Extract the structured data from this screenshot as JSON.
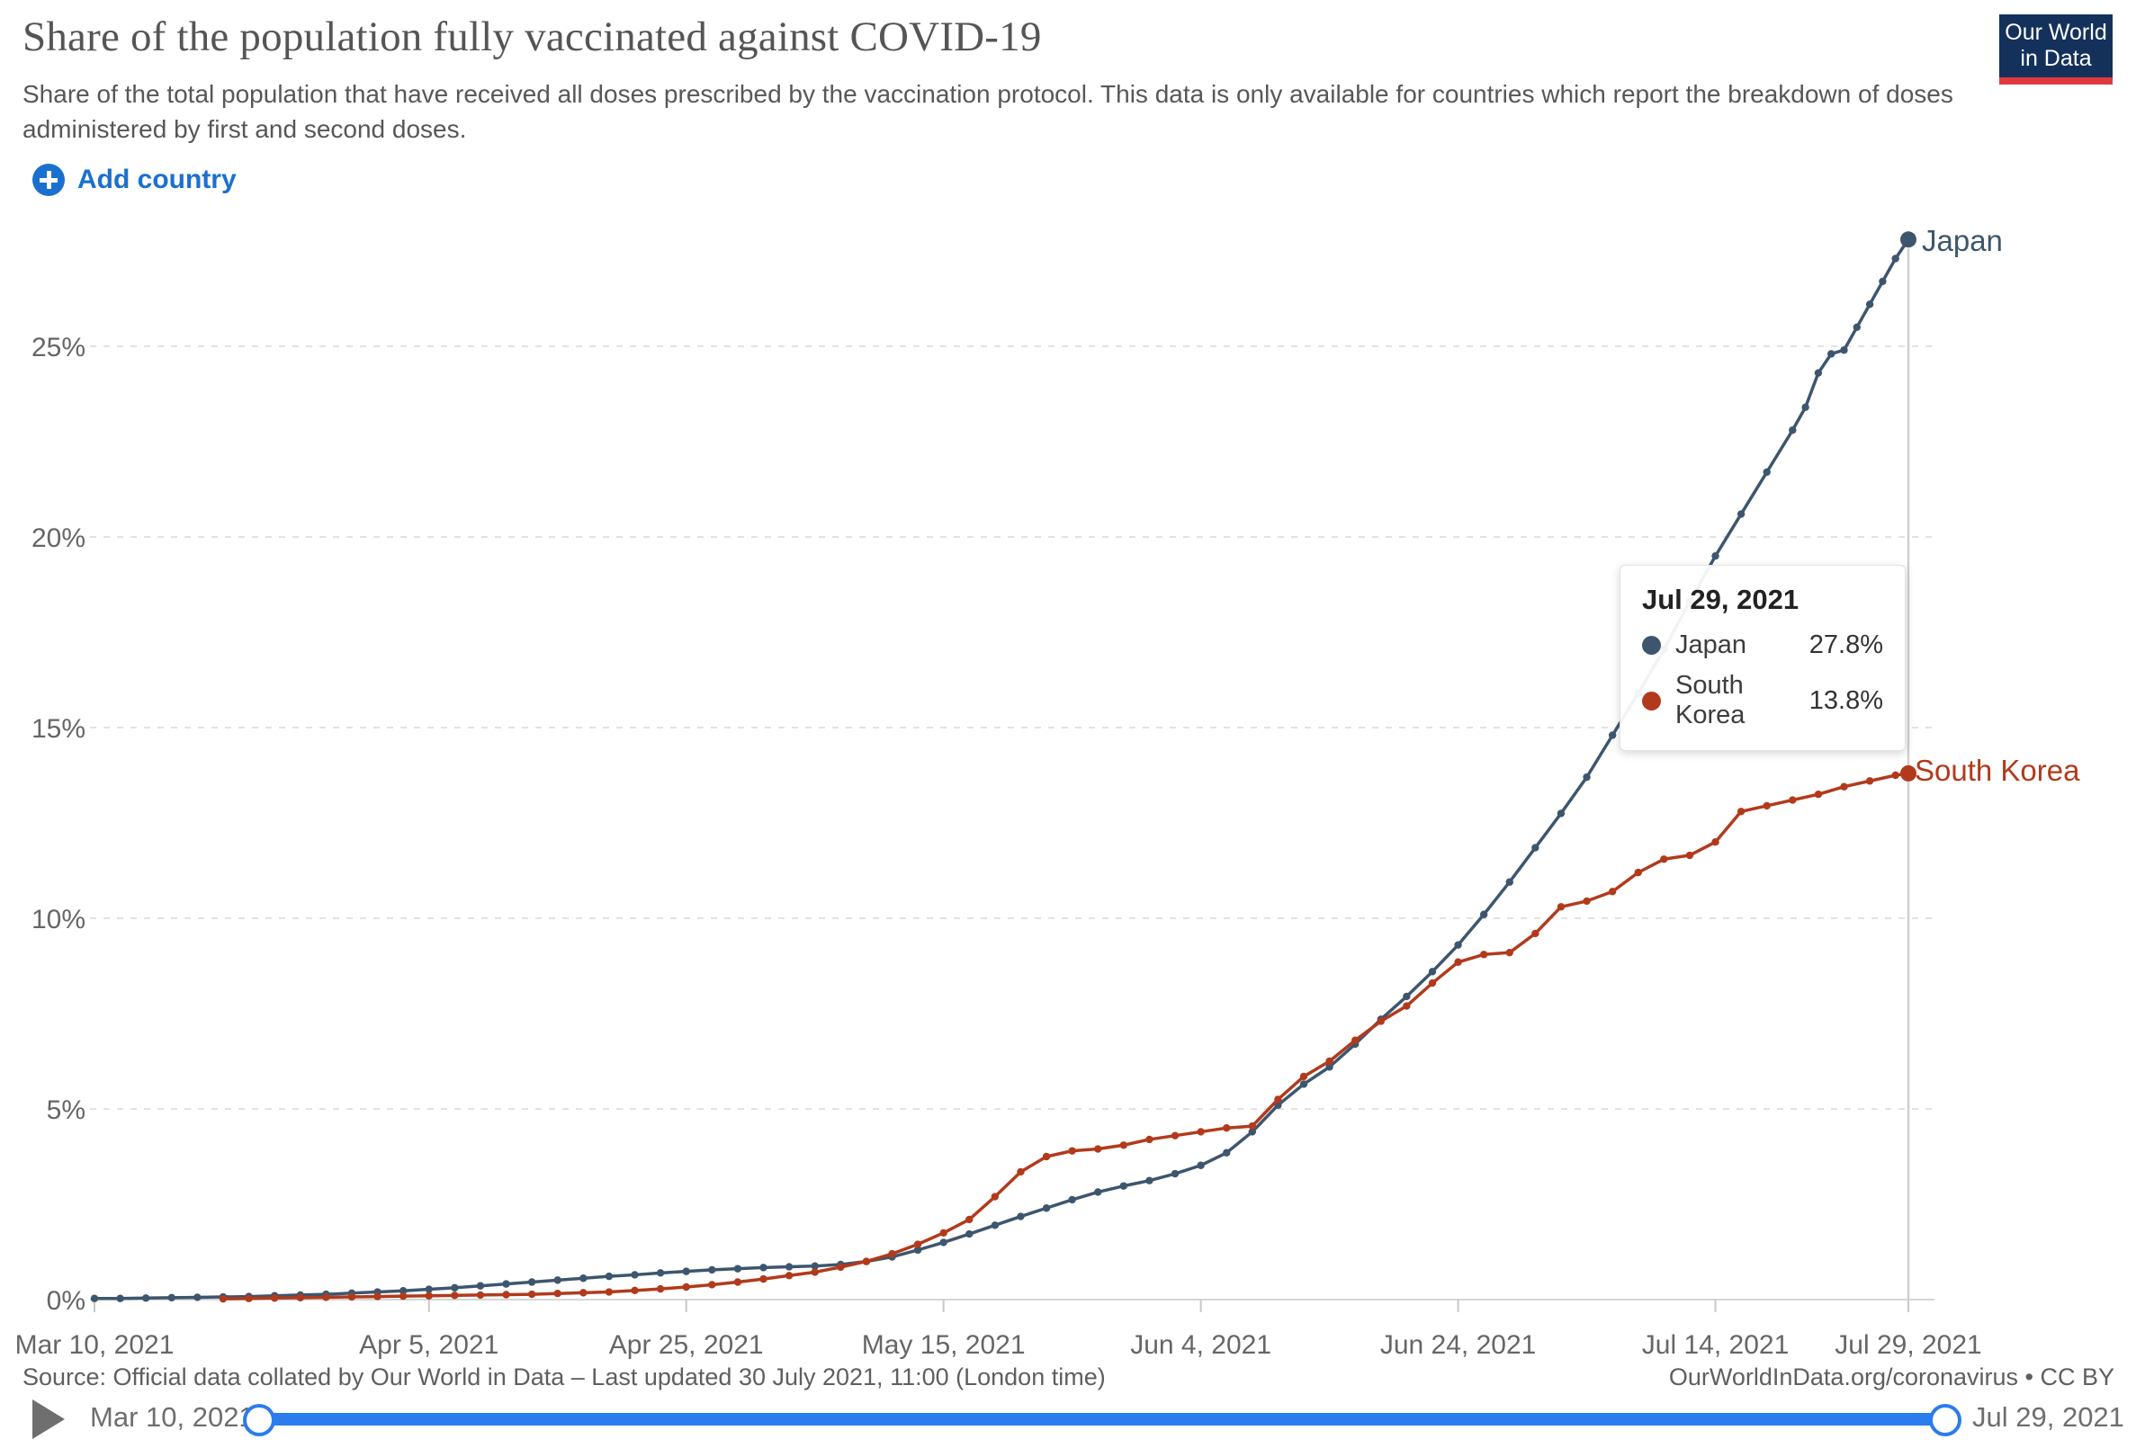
{
  "header": {
    "logo": {
      "line1": "Our World",
      "line2": "in Data"
    }
  },
  "controls": {
    "add_country_label": "Add country"
  },
  "tooltip": {
    "date": "Jul 29, 2021",
    "rows": [
      {
        "label": "Japan",
        "value": "27.8%",
        "color": "#3d566e"
      },
      {
        "label": "South Korea",
        "value": "13.8%",
        "color": "#b23a1c"
      }
    ]
  },
  "footer": {
    "source": "Source: Official data collated by Our World in Data – Last updated 30 July 2021, 11:00 (London time)",
    "license": "OurWorldInData.org/coronavirus • CC BY"
  },
  "timeline": {
    "start_label": "Mar 10, 2021",
    "end_label": "Jul 29, 2021"
  },
  "colors": {
    "ui_blue": "#1a70cf",
    "slider_blue": "#2b7cec",
    "grid": "#d9d9d9",
    "axis": "#c8c8c8",
    "tick_text": "#666666"
  },
  "chart_data": {
    "type": "line",
    "title": "Share of the population fully vaccinated against COVID-19",
    "subtitle": "Share of the total population that have received all doses prescribed by the vaccination protocol. This data is only available for countries which report the breakdown of doses administered by first and second doses.",
    "xlabel": "",
    "ylabel": "",
    "unit": "%",
    "grid": "dashed horizontal",
    "x_start_date": "Mar 10, 2021",
    "x_end_date": "Jul 29, 2021",
    "ylim": [
      0,
      28.5
    ],
    "y_ticks": [
      0,
      5,
      10,
      15,
      20,
      25
    ],
    "x_ticks": [
      {
        "day": 0,
        "label": "Mar 10, 2021"
      },
      {
        "day": 26,
        "label": "Apr 5, 2021"
      },
      {
        "day": 46,
        "label": "Apr 25, 2021"
      },
      {
        "day": 66,
        "label": "May 15, 2021"
      },
      {
        "day": 86,
        "label": "Jun 4, 2021"
      },
      {
        "day": 106,
        "label": "Jun 24, 2021"
      },
      {
        "day": 126,
        "label": "Jul 14, 2021"
      },
      {
        "day": 141,
        "label": "Jul 29, 2021"
      }
    ],
    "series": [
      {
        "name": "Japan",
        "end_label": "Japan",
        "color": "#3d566e",
        "final_value": 27.8,
        "points": [
          [
            0,
            0.03
          ],
          [
            2,
            0.03
          ],
          [
            4,
            0.04
          ],
          [
            6,
            0.05
          ],
          [
            8,
            0.06
          ],
          [
            10,
            0.07
          ],
          [
            12,
            0.08
          ],
          [
            14,
            0.1
          ],
          [
            16,
            0.12
          ],
          [
            18,
            0.14
          ],
          [
            20,
            0.17
          ],
          [
            22,
            0.2
          ],
          [
            24,
            0.23
          ],
          [
            26,
            0.27
          ],
          [
            28,
            0.31
          ],
          [
            30,
            0.36
          ],
          [
            32,
            0.41
          ],
          [
            34,
            0.46
          ],
          [
            36,
            0.51
          ],
          [
            38,
            0.56
          ],
          [
            40,
            0.61
          ],
          [
            42,
            0.65
          ],
          [
            44,
            0.7
          ],
          [
            46,
            0.74
          ],
          [
            48,
            0.78
          ],
          [
            50,
            0.81
          ],
          [
            52,
            0.84
          ],
          [
            54,
            0.86
          ],
          [
            56,
            0.88
          ],
          [
            58,
            0.92
          ],
          [
            60,
            1.0
          ],
          [
            62,
            1.12
          ],
          [
            64,
            1.3
          ],
          [
            66,
            1.5
          ],
          [
            68,
            1.72
          ],
          [
            70,
            1.95
          ],
          [
            72,
            2.18
          ],
          [
            74,
            2.4
          ],
          [
            76,
            2.62
          ],
          [
            78,
            2.82
          ],
          [
            80,
            2.98
          ],
          [
            82,
            3.12
          ],
          [
            84,
            3.3
          ],
          [
            86,
            3.52
          ],
          [
            88,
            3.85
          ],
          [
            90,
            4.4
          ],
          [
            92,
            5.1
          ],
          [
            94,
            5.65
          ],
          [
            96,
            6.1
          ],
          [
            98,
            6.7
          ],
          [
            100,
            7.35
          ],
          [
            102,
            7.95
          ],
          [
            104,
            8.6
          ],
          [
            106,
            9.3
          ],
          [
            108,
            10.1
          ],
          [
            110,
            10.95
          ],
          [
            112,
            11.85
          ],
          [
            114,
            12.75
          ],
          [
            116,
            13.7
          ],
          [
            118,
            14.8
          ],
          [
            120,
            15.9
          ],
          [
            122,
            17.05
          ],
          [
            124,
            18.3
          ],
          [
            126,
            19.5
          ],
          [
            128,
            20.6
          ],
          [
            130,
            21.7
          ],
          [
            132,
            22.8
          ],
          [
            133,
            23.4
          ],
          [
            134,
            24.3
          ],
          [
            135,
            24.8
          ],
          [
            136,
            24.9
          ],
          [
            137,
            25.5
          ],
          [
            138,
            26.1
          ],
          [
            139,
            26.7
          ],
          [
            140,
            27.3
          ],
          [
            141,
            27.8
          ]
        ]
      },
      {
        "name": "South Korea",
        "end_label": "South Korea",
        "color": "#b23a1c",
        "final_value": 13.8,
        "points": [
          [
            10,
            0.02
          ],
          [
            12,
            0.03
          ],
          [
            14,
            0.04
          ],
          [
            16,
            0.05
          ],
          [
            18,
            0.06
          ],
          [
            20,
            0.07
          ],
          [
            22,
            0.08
          ],
          [
            24,
            0.09
          ],
          [
            26,
            0.1
          ],
          [
            28,
            0.11
          ],
          [
            30,
            0.12
          ],
          [
            32,
            0.13
          ],
          [
            34,
            0.14
          ],
          [
            36,
            0.16
          ],
          [
            38,
            0.18
          ],
          [
            40,
            0.2
          ],
          [
            42,
            0.24
          ],
          [
            44,
            0.28
          ],
          [
            46,
            0.33
          ],
          [
            48,
            0.39
          ],
          [
            50,
            0.46
          ],
          [
            52,
            0.54
          ],
          [
            54,
            0.63
          ],
          [
            56,
            0.72
          ],
          [
            58,
            0.85
          ],
          [
            60,
            1.0
          ],
          [
            62,
            1.2
          ],
          [
            64,
            1.45
          ],
          [
            66,
            1.75
          ],
          [
            68,
            2.1
          ],
          [
            70,
            2.7
          ],
          [
            72,
            3.35
          ],
          [
            74,
            3.75
          ],
          [
            76,
            3.9
          ],
          [
            78,
            3.95
          ],
          [
            80,
            4.05
          ],
          [
            82,
            4.2
          ],
          [
            84,
            4.3
          ],
          [
            86,
            4.4
          ],
          [
            88,
            4.5
          ],
          [
            90,
            4.55
          ],
          [
            92,
            5.25
          ],
          [
            94,
            5.85
          ],
          [
            96,
            6.25
          ],
          [
            98,
            6.8
          ],
          [
            100,
            7.3
          ],
          [
            102,
            7.7
          ],
          [
            104,
            8.3
          ],
          [
            106,
            8.85
          ],
          [
            108,
            9.05
          ],
          [
            110,
            9.1
          ],
          [
            112,
            9.6
          ],
          [
            114,
            10.3
          ],
          [
            116,
            10.45
          ],
          [
            118,
            10.7
          ],
          [
            120,
            11.2
          ],
          [
            122,
            11.55
          ],
          [
            124,
            11.65
          ],
          [
            126,
            12.0
          ],
          [
            128,
            12.8
          ],
          [
            130,
            12.95
          ],
          [
            132,
            13.1
          ],
          [
            134,
            13.25
          ],
          [
            136,
            13.45
          ],
          [
            138,
            13.6
          ],
          [
            140,
            13.75
          ],
          [
            141,
            13.8
          ]
        ]
      }
    ],
    "tooltip_reference_date_day": 141,
    "legend_position": "end-of-line labels"
  }
}
